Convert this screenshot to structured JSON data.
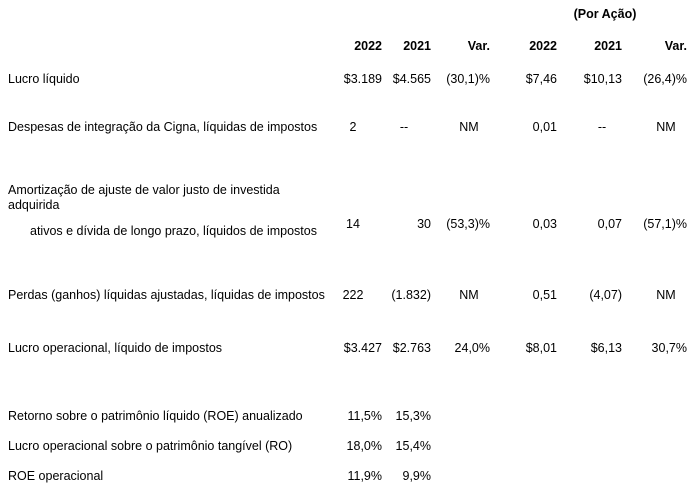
{
  "header": {
    "per_share_label": "(Por Ação)",
    "columns": [
      "2022",
      "2021",
      "Var.",
      "2022",
      "2021",
      "Var."
    ]
  },
  "rows": [
    {
      "label": "Lucro líquido",
      "values": [
        "$3.189",
        "$4.565",
        "(30,1)%",
        "$7,46",
        "$10,13",
        "(26,4)%"
      ]
    },
    {
      "label": "Despesas de integração da Cigna, líquidas de impostos",
      "values": [
        "2",
        "--",
        "NM",
        "0,01",
        "--",
        "NM"
      ]
    },
    {
      "label": "Amortização de ajuste de valor justo de investida adquirida",
      "label2": "ativos e dívida de longo prazo, líquidos de impostos",
      "values": [
        "14",
        "30",
        "(53,3)%",
        "0,03",
        "0,07",
        "(57,1)%"
      ]
    },
    {
      "label": "Perdas (ganhos) líquidas ajustadas, líquidas de impostos",
      "values": [
        "222",
        "(1.832)",
        "NM",
        "0,51",
        "(4,07)",
        "NM"
      ]
    },
    {
      "label": "Lucro operacional, líquido de impostos",
      "values": [
        "$3.427",
        "$2.763",
        "24,0%",
        "$8,01",
        "$6,13",
        "30,7%"
      ]
    }
  ],
  "ratios": [
    {
      "label": "Retorno sobre o patrimônio líquido (ROE) anualizado",
      "values": [
        "11,5%",
        "15,3%"
      ]
    },
    {
      "label": "Lucro operacional sobre o patrimônio tangível (RO)",
      "values": [
        "18,0%",
        "15,4%"
      ]
    },
    {
      "label": "ROE operacional",
      "values": [
        "11,9%",
        "9,9%"
      ]
    }
  ]
}
